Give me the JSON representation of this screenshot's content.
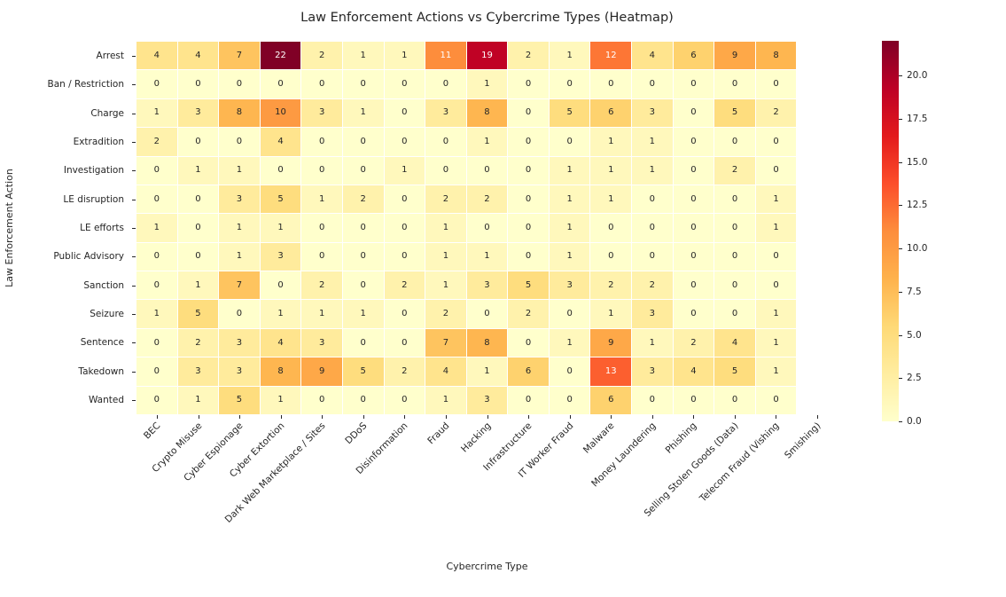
{
  "figure": {
    "background": "#ffffff",
    "text_color": "#262626",
    "cell_line_color": "#ffffff"
  },
  "chart_data": {
    "type": "heatmap",
    "title": "Law Enforcement Actions vs Cybercrime Types (Heatmap)",
    "xlabel": "Cybercrime Type",
    "ylabel": "Law Enforcement Action",
    "columns": [
      "BEC",
      "Crypto Misuse",
      "Cyber Espionage",
      "Cyber Extortion",
      "Dark Web Marketplace / Sites",
      "DDoS",
      "Disinformation",
      "Fraud",
      "Hacking",
      "Infrastructure",
      "IT Worker Fraud",
      "Malware",
      "Money Laundering",
      "Phishing",
      "Selling Stolen Goods (Data)",
      "Telecom Fraud (Vishing",
      "Smishing)"
    ],
    "rows": [
      "Arrest",
      "Ban / Restriction",
      "Charge",
      "Extradition",
      "Investigation",
      "LE disruption",
      "LE efforts",
      "Public Advisory",
      "Sanction",
      "Seizure",
      "Sentence",
      "Takedown",
      "Wanted"
    ],
    "values": [
      [
        4,
        4,
        7,
        22,
        2,
        1,
        1,
        11,
        19,
        2,
        1,
        12,
        4,
        6,
        9,
        8,
        null
      ],
      [
        0,
        0,
        0,
        0,
        0,
        0,
        0,
        0,
        1,
        0,
        0,
        0,
        0,
        0,
        0,
        0,
        null
      ],
      [
        1,
        3,
        8,
        10,
        3,
        1,
        0,
        3,
        8,
        0,
        5,
        6,
        3,
        0,
        5,
        2,
        null
      ],
      [
        2,
        0,
        0,
        4,
        0,
        0,
        0,
        0,
        1,
        0,
        0,
        1,
        1,
        0,
        0,
        0,
        null
      ],
      [
        0,
        1,
        1,
        0,
        0,
        0,
        1,
        0,
        0,
        0,
        1,
        1,
        1,
        0,
        2,
        0,
        null
      ],
      [
        0,
        0,
        3,
        5,
        1,
        2,
        0,
        2,
        2,
        0,
        1,
        1,
        0,
        0,
        0,
        1,
        null
      ],
      [
        1,
        0,
        1,
        1,
        0,
        0,
        0,
        1,
        0,
        0,
        1,
        0,
        0,
        0,
        0,
        1,
        null
      ],
      [
        0,
        0,
        1,
        3,
        0,
        0,
        0,
        1,
        1,
        0,
        1,
        0,
        0,
        0,
        0,
        0,
        null
      ],
      [
        0,
        1,
        7,
        0,
        2,
        0,
        2,
        1,
        3,
        5,
        3,
        2,
        2,
        0,
        0,
        0,
        null
      ],
      [
        1,
        5,
        0,
        1,
        1,
        1,
        0,
        2,
        0,
        2,
        0,
        1,
        3,
        0,
        0,
        1,
        null
      ],
      [
        0,
        2,
        3,
        4,
        3,
        0,
        0,
        7,
        8,
        0,
        1,
        9,
        1,
        2,
        4,
        1,
        null
      ],
      [
        0,
        3,
        3,
        8,
        9,
        5,
        2,
        4,
        1,
        6,
        0,
        13,
        3,
        4,
        5,
        1,
        null
      ],
      [
        0,
        1,
        5,
        1,
        0,
        0,
        0,
        1,
        3,
        0,
        0,
        6,
        0,
        0,
        0,
        0,
        null
      ]
    ],
    "vmin": 0,
    "vmax": 22,
    "annotated": true,
    "annot_white_threshold": 0.48,
    "grid": false,
    "colormap": {
      "name": "YlOrRd",
      "stops": [
        {
          "p": 0.0,
          "c": "#ffffcc"
        },
        {
          "p": 0.125,
          "c": "#ffeda0"
        },
        {
          "p": 0.25,
          "c": "#fed976"
        },
        {
          "p": 0.375,
          "c": "#feb24c"
        },
        {
          "p": 0.5,
          "c": "#fd8d3c"
        },
        {
          "p": 0.625,
          "c": "#fc4e2a"
        },
        {
          "p": 0.75,
          "c": "#e31a1c"
        },
        {
          "p": 0.875,
          "c": "#bd0026"
        },
        {
          "p": 1.0,
          "c": "#800026"
        }
      ]
    },
    "colorbar_ticks": [
      "0.0",
      "2.5",
      "5.0",
      "7.5",
      "10.0",
      "12.5",
      "15.0",
      "17.5",
      "20.0"
    ],
    "legend_position": "right-colorbar"
  }
}
